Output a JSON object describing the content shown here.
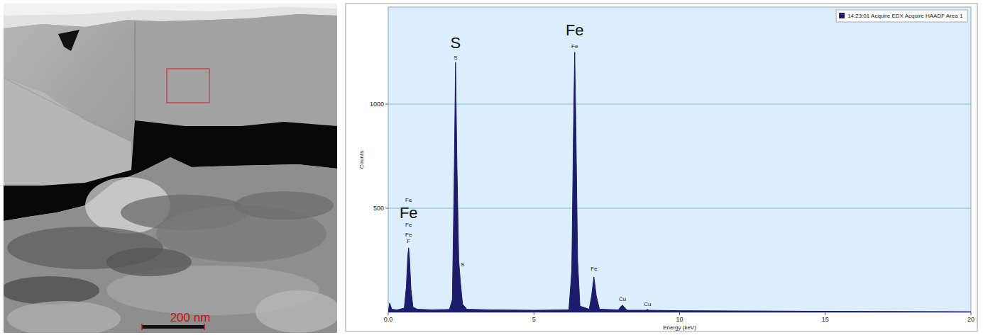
{
  "image": {
    "scale_bar": "200 nm"
  },
  "chart_data": {
    "type": "area",
    "x_label": "Energy (keV)",
    "y_label": "Counts",
    "x": [
      0.0,
      0.05,
      0.12,
      0.3,
      0.55,
      0.62,
      0.67,
      0.7,
      0.73,
      0.78,
      0.85,
      1.0,
      1.5,
      2.1,
      2.2,
      2.26,
      2.31,
      2.36,
      2.42,
      2.48,
      2.55,
      2.7,
      3.5,
      5.0,
      6.2,
      6.3,
      6.36,
      6.4,
      6.44,
      6.5,
      6.58,
      6.9,
      6.98,
      7.06,
      7.14,
      7.25,
      7.9,
      8.0,
      8.04,
      8.1,
      8.2,
      8.85,
      8.9,
      8.95,
      10.0,
      15.0,
      20.0
    ],
    "series": [
      {
        "name": "14:23:01 Acquire EDX Acquire HAADF Area 1",
        "color": "#1c1c6b",
        "values": [
          0,
          45,
          15,
          12,
          20,
          120,
          270,
          310,
          260,
          110,
          25,
          15,
          12,
          14,
          60,
          600,
          1200,
          700,
          250,
          140,
          40,
          15,
          12,
          10,
          12,
          200,
          900,
          1250,
          900,
          250,
          30,
          15,
          80,
          170,
          80,
          15,
          12,
          30,
          35,
          25,
          10,
          10,
          14,
          10,
          8,
          5,
          3
        ]
      }
    ],
    "xlim": [
      0,
      20
    ],
    "xticks": [
      {
        "value": 0,
        "label": "0.0"
      },
      5,
      10,
      15,
      20
    ],
    "ylim": [
      0,
      1466
    ],
    "yticks": [
      500,
      1000
    ],
    "grid": true,
    "legend": "upper right",
    "element_labels": [
      {
        "text": "S",
        "x": 2.31,
        "y": 1270
      },
      {
        "text": "Fe",
        "x": 6.4,
        "y": 1330
      },
      {
        "text": "Fe",
        "x": 0.7,
        "y": 452
      }
    ],
    "peak_labels": [
      {
        "text": "Fe",
        "x": 0.7,
        "y": 530
      },
      {
        "text": "Fe",
        "x": 0.7,
        "y": 410
      },
      {
        "text": "Fe",
        "x": 0.7,
        "y": 365
      },
      {
        "text": "F",
        "x": 0.7,
        "y": 335
      },
      {
        "text": "S",
        "x": 2.31,
        "y": 1215
      },
      {
        "text": "S",
        "x": 2.55,
        "y": 220
      },
      {
        "text": "Fe",
        "x": 6.4,
        "y": 1270
      },
      {
        "text": "Fe",
        "x": 7.06,
        "y": 200
      },
      {
        "text": "Cu",
        "x": 8.04,
        "y": 55
      },
      {
        "text": "Cu",
        "x": 8.9,
        "y": 30
      }
    ]
  }
}
